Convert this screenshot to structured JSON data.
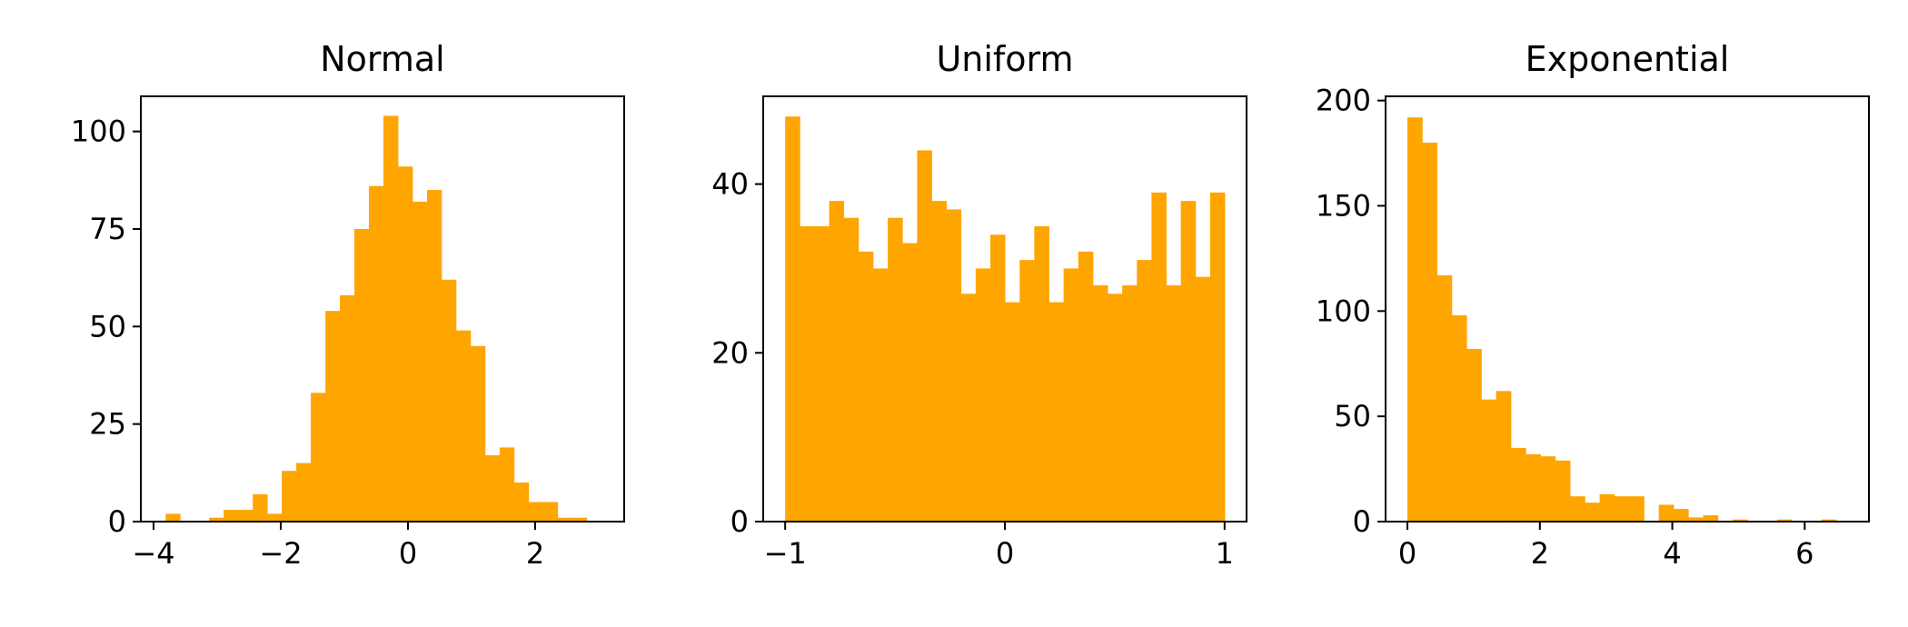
{
  "colors": {
    "bar": "#FFA500",
    "axis": "#000000",
    "background": "#FFFFFF"
  },
  "chart_data": [
    {
      "type": "bar",
      "title": "Normal",
      "xlabel": "",
      "ylabel": "",
      "xlim": [
        -4.2,
        3.4
      ],
      "ylim": [
        0,
        109
      ],
      "xticks": [
        -4,
        -2,
        0,
        2
      ],
      "xtick_labels": [
        "−4",
        "−2",
        "0",
        "2"
      ],
      "yticks": [
        0,
        25,
        50,
        75,
        100
      ],
      "ytick_labels": [
        "0",
        "25",
        "50",
        "75",
        "100"
      ],
      "bin_start": -3.81,
      "bin_width": 0.2283,
      "values": [
        2,
        0,
        0,
        1,
        3,
        3,
        7,
        2,
        13,
        15,
        33,
        54,
        58,
        75,
        86,
        104,
        91,
        82,
        85,
        62,
        49,
        45,
        17,
        19,
        10,
        5,
        5,
        1,
        1
      ],
      "grid": false,
      "legend": "none"
    },
    {
      "type": "bar",
      "title": "Uniform",
      "xlabel": "",
      "ylabel": "",
      "xlim": [
        -1.1,
        1.1
      ],
      "ylim": [
        0,
        50.4
      ],
      "xticks": [
        -1,
        0,
        1
      ],
      "xtick_labels": [
        "−1",
        "0",
        "1"
      ],
      "yticks": [
        0,
        20,
        40
      ],
      "ytick_labels": [
        "0",
        "20",
        "40"
      ],
      "bin_start": -1.0,
      "bin_width": 0.0667,
      "values": [
        48,
        35,
        35,
        38,
        36,
        32,
        30,
        36,
        33,
        44,
        38,
        37,
        27,
        30,
        34,
        26,
        31,
        35,
        26,
        30,
        32,
        28,
        27,
        28,
        31,
        39,
        28,
        38,
        29,
        39
      ],
      "grid": false,
      "legend": "none"
    },
    {
      "type": "bar",
      "title": "Exponential",
      "xlabel": "",
      "ylabel": "",
      "xlim": [
        -0.33,
        6.97
      ],
      "ylim": [
        0,
        202
      ],
      "xticks": [
        0,
        2,
        4,
        6
      ],
      "xtick_labels": [
        "0",
        "2",
        "4",
        "6"
      ],
      "yticks": [
        0,
        50,
        100,
        150,
        200
      ],
      "ytick_labels": [
        "0",
        "50",
        "100",
        "150",
        "200"
      ],
      "bin_start": 0.0,
      "bin_width": 0.2233,
      "values": [
        192,
        180,
        117,
        98,
        82,
        58,
        62,
        35,
        32,
        31,
        29,
        12,
        9,
        13,
        12,
        12,
        0,
        8,
        6,
        2,
        3,
        0,
        1,
        0,
        0,
        1,
        0,
        0,
        1,
        0
      ],
      "grid": false,
      "legend": "none"
    }
  ]
}
